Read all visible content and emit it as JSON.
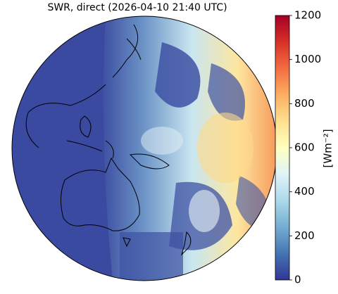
{
  "title": "SWR, direct (2026-04-10 21:40 UTC)",
  "colorbar": {
    "label": "[Wm⁻²]",
    "lim": [
      0,
      1200
    ],
    "ticks": [
      0,
      200,
      400,
      600,
      800,
      1000,
      1200
    ],
    "colors": [
      "#313695",
      "#4575b4",
      "#74add1",
      "#abd9e9",
      "#e0f3f8",
      "#ffffbf",
      "#fee090",
      "#fdae61",
      "#f46d43",
      "#d73027",
      "#a50026"
    ]
  }
}
